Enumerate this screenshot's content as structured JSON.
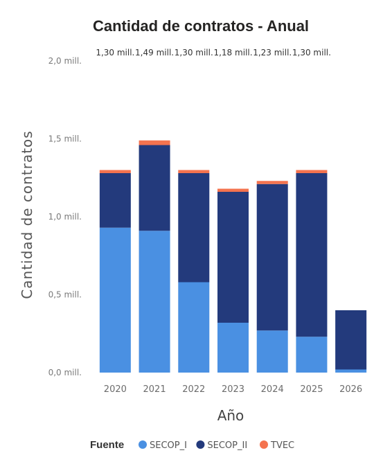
{
  "chart_data": {
    "type": "bar",
    "stacked": true,
    "title": "Cantidad de contratos - Anual",
    "xlabel": "Año",
    "ylabel": "Cantidad de contratos",
    "categories": [
      "2020",
      "2021",
      "2022",
      "2023",
      "2024",
      "2025",
      "2026"
    ],
    "totals_labels": [
      "1,30 mill.",
      "1,49 mill.",
      "1,30 mill.",
      "1,18 mill.",
      "1,23 mill.",
      "1,30 mill."
    ],
    "yticks": [
      {
        "value": 0.0,
        "label": "0,0 mill."
      },
      {
        "value": 0.5,
        "label": "0,5 mill."
      },
      {
        "value": 1.0,
        "label": "1,0 mill."
      },
      {
        "value": 1.5,
        "label": "1,5 mill."
      },
      {
        "value": 2.0,
        "label": "2,0 mill."
      }
    ],
    "ylim": [
      0,
      2.0
    ],
    "series": [
      {
        "name": "SECOP_I",
        "color": "#4a90e2",
        "values": [
          0.93,
          0.91,
          0.58,
          0.32,
          0.27,
          0.23,
          0.02
        ]
      },
      {
        "name": "SECOP_II",
        "color": "#233a7c",
        "values": [
          0.35,
          0.55,
          0.7,
          0.84,
          0.94,
          1.05,
          0.38
        ]
      },
      {
        "name": "TVEC",
        "color": "#f4734f",
        "values": [
          0.02,
          0.03,
          0.02,
          0.02,
          0.02,
          0.02,
          0.0
        ]
      }
    ],
    "legend": {
      "title": "Fuente",
      "placement": "bottom"
    },
    "grid": false
  }
}
